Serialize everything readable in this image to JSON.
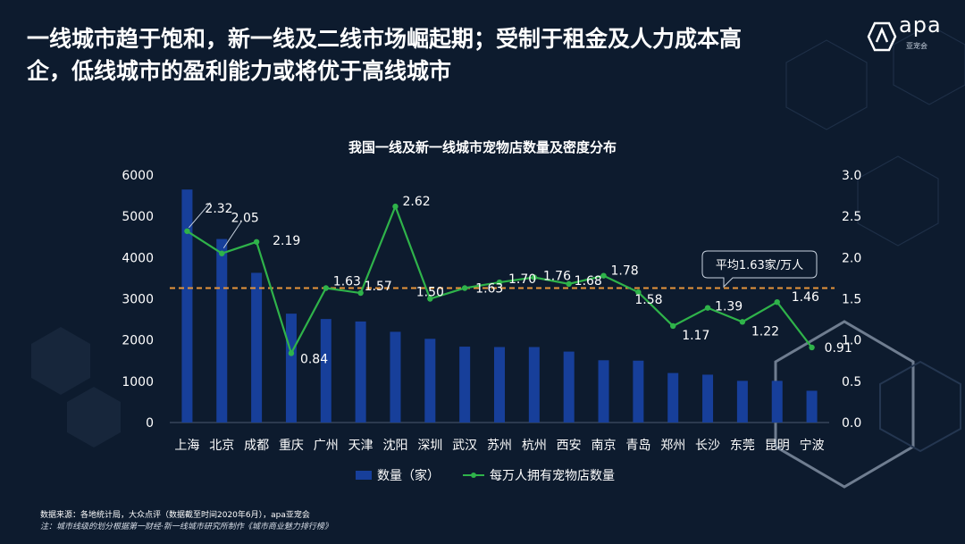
{
  "headline": {
    "line1": "一线城市趋于饱和，新一线及二线市场崛起期；受制于租金及人力成本高",
    "line2": "企，低线城市的盈利能力或将优于高线城市"
  },
  "logo": {
    "text": "apa",
    "sub": "亚宠会"
  },
  "footer": {
    "source": "数据来源：各地统计局，大众点评（数据截至时间2020年6月），apa亚宠会",
    "note": "注：城市线级的划分根据第一财经·新一线城市研究所制作《城市商业魅力排行榜》"
  },
  "chart_data": {
    "type": "bar",
    "title": "我国一线及新一线城市宠物店数量及密度分布",
    "categories": [
      "上海",
      "北京",
      "成都",
      "重庆",
      "广州",
      "天津",
      "沈阳",
      "深圳",
      "武汉",
      "苏州",
      "杭州",
      "西安",
      "南京",
      "青岛",
      "郑州",
      "长沙",
      "东莞",
      "昆明",
      "宁波"
    ],
    "series": [
      {
        "name": "数量（家）",
        "type": "bar",
        "axis": "left",
        "color": "#173f9a",
        "values": [
          5650,
          4450,
          3630,
          2640,
          2510,
          2450,
          2200,
          2030,
          1840,
          1830,
          1830,
          1720,
          1510,
          1500,
          1200,
          1160,
          1010,
          1010,
          770
        ]
      },
      {
        "name": "每万人拥有宠物店数量",
        "type": "line",
        "axis": "right",
        "color": "#2fb34a",
        "values": [
          2.32,
          2.05,
          2.19,
          0.84,
          1.63,
          1.57,
          2.62,
          1.5,
          1.63,
          1.7,
          1.76,
          1.68,
          1.78,
          1.58,
          1.17,
          1.39,
          1.22,
          1.46,
          0.91
        ],
        "labels": [
          "2.32",
          "2.05",
          "2.19",
          "0.84",
          "1.63",
          "1.57",
          "2.62",
          "1.50",
          "1.63",
          "1.70",
          "1.76",
          "1.68",
          "1.78",
          "1.58",
          "1.17",
          "1.39",
          "1.22",
          "1.46",
          "0.91"
        ]
      }
    ],
    "y_left": {
      "min": 0,
      "max": 6000,
      "ticks": [
        "0",
        "1000",
        "2000",
        "3000",
        "4000",
        "5000",
        "6000"
      ]
    },
    "y_right": {
      "min": 0,
      "max": 3.0,
      "ticks": [
        "0.0",
        "0.5",
        "1.0",
        "1.5",
        "2.0",
        "2.5",
        "3.0"
      ]
    },
    "average": {
      "value": 1.63,
      "label": "平均1.63家/万人",
      "color": "#e6953a"
    },
    "legend_position": "bottom",
    "grid": false
  }
}
